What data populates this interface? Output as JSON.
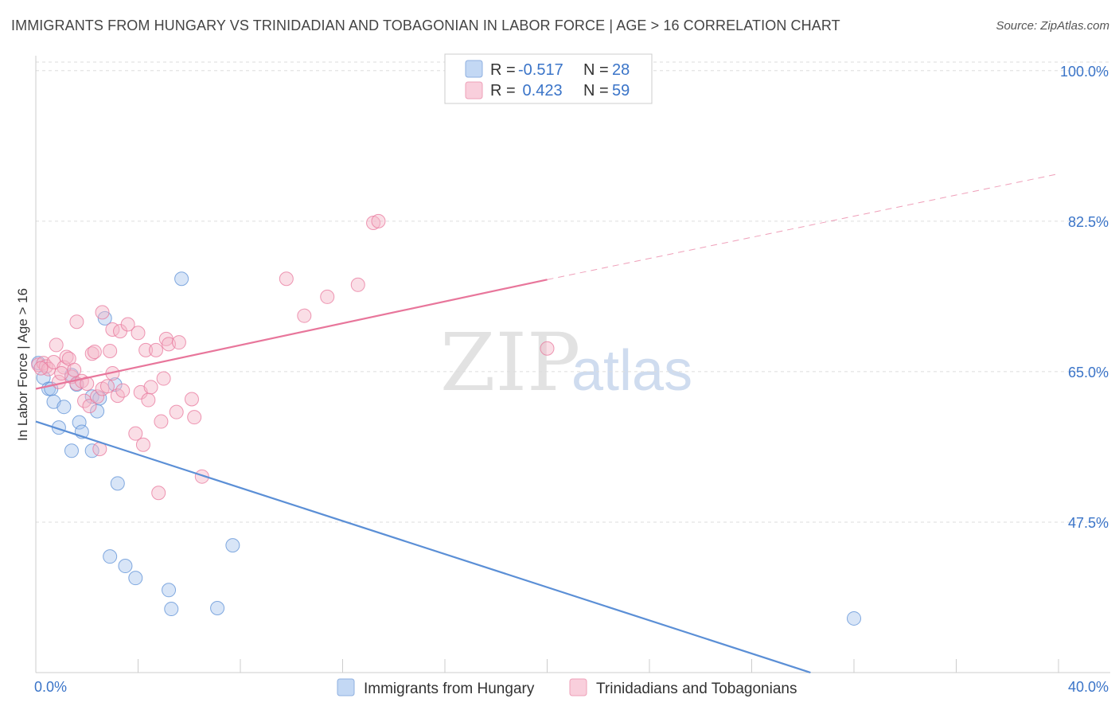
{
  "header": {
    "title": "IMMIGRANTS FROM HUNGARY VS TRINIDADIAN AND TOBAGONIAN IN LABOR FORCE | AGE > 16 CORRELATION CHART",
    "source": "Source: ZipAtlas.com"
  },
  "watermark": {
    "part1": "ZIP",
    "part2": "atlas"
  },
  "legend": {
    "r_label": "R =",
    "n_label": "N =",
    "series": [
      {
        "r": "-0.517",
        "n": "28",
        "color": "#a9c6ee"
      },
      {
        "r": " 0.423",
        "n": "59",
        "color": "#f5b6c8"
      }
    ]
  },
  "bottom_legend": [
    "Immigrants from Hungary",
    "Trinidadians and Tobagonians"
  ],
  "chart_data": {
    "type": "scatter",
    "title": "IMMIGRANTS FROM HUNGARY VS TRINIDADIAN AND TOBAGONIAN IN LABOR FORCE | AGE > 16 CORRELATION CHART",
    "ylabel": "In Labor Force | Age > 16",
    "xlim": [
      0,
      40
    ],
    "ylim": [
      30,
      101
    ],
    "y_ticks": [
      {
        "value": 100.0,
        "label": "100.0%"
      },
      {
        "value": 82.5,
        "label": "82.5%"
      },
      {
        "value": 65.0,
        "label": "65.0%"
      },
      {
        "value": 47.5,
        "label": "47.5%"
      }
    ],
    "x_tick_labels": {
      "min": "0.0%",
      "max": "40.0%"
    },
    "grid": true,
    "series": [
      {
        "name": "Immigrants from Hungary",
        "color": "#5b8fd6",
        "fill": "#a9c6ee",
        "trend": {
          "x": [
            0,
            30.3
          ],
          "y": [
            59.2,
            30
          ],
          "dashed_to": null
        },
        "points": [
          [
            0.1,
            66.0
          ],
          [
            0.3,
            64.3
          ],
          [
            0.5,
            63.0
          ],
          [
            0.6,
            63.0
          ],
          [
            0.7,
            61.5
          ],
          [
            0.9,
            58.5
          ],
          [
            1.1,
            60.9
          ],
          [
            1.4,
            64.6
          ],
          [
            1.4,
            55.8
          ],
          [
            1.6,
            63.5
          ],
          [
            1.7,
            59.1
          ],
          [
            1.8,
            58.0
          ],
          [
            2.2,
            62.1
          ],
          [
            2.2,
            55.8
          ],
          [
            2.4,
            60.4
          ],
          [
            2.5,
            61.9
          ],
          [
            2.7,
            71.2
          ],
          [
            3.1,
            63.5
          ],
          [
            3.2,
            52.0
          ],
          [
            2.9,
            43.5
          ],
          [
            3.5,
            42.4
          ],
          [
            3.9,
            41.0
          ],
          [
            5.2,
            39.6
          ],
          [
            5.3,
            37.4
          ],
          [
            5.7,
            75.8
          ],
          [
            7.1,
            37.5
          ],
          [
            7.7,
            44.8
          ],
          [
            32.0,
            36.3
          ]
        ]
      },
      {
        "name": "Trinidadians and Tobagonians",
        "color": "#e8769b",
        "fill": "#f5b6c8",
        "trend": {
          "x": [
            0,
            20
          ],
          "y": [
            63.0,
            75.7
          ],
          "dashed_to": [
            40,
            88.0
          ]
        },
        "points": [
          [
            0.1,
            65.8
          ],
          [
            0.3,
            66.0
          ],
          [
            0.4,
            65.6
          ],
          [
            0.5,
            65.3
          ],
          [
            0.7,
            66.1
          ],
          [
            0.8,
            68.1
          ],
          [
            0.9,
            63.8
          ],
          [
            1.1,
            65.5
          ],
          [
            1.2,
            66.7
          ],
          [
            1.3,
            66.5
          ],
          [
            1.4,
            64.4
          ],
          [
            1.5,
            65.2
          ],
          [
            1.6,
            63.6
          ],
          [
            1.6,
            70.8
          ],
          [
            1.8,
            63.9
          ],
          [
            1.9,
            61.6
          ],
          [
            2.0,
            63.6
          ],
          [
            2.1,
            61.0
          ],
          [
            2.2,
            67.1
          ],
          [
            2.3,
            67.3
          ],
          [
            2.4,
            62.1
          ],
          [
            2.5,
            56.0
          ],
          [
            2.6,
            63.0
          ],
          [
            2.6,
            71.9
          ],
          [
            2.8,
            63.3
          ],
          [
            2.9,
            67.4
          ],
          [
            3.0,
            69.9
          ],
          [
            3.2,
            62.2
          ],
          [
            3.3,
            69.7
          ],
          [
            3.4,
            62.8
          ],
          [
            3.6,
            70.5
          ],
          [
            3.9,
            57.8
          ],
          [
            4.0,
            69.5
          ],
          [
            4.1,
            62.6
          ],
          [
            4.2,
            56.5
          ],
          [
            4.3,
            67.5
          ],
          [
            4.4,
            61.7
          ],
          [
            4.5,
            63.2
          ],
          [
            4.7,
            67.5
          ],
          [
            4.8,
            50.9
          ],
          [
            4.9,
            59.2
          ],
          [
            5.0,
            64.2
          ],
          [
            5.1,
            68.8
          ],
          [
            5.2,
            68.2
          ],
          [
            5.5,
            60.3
          ],
          [
            5.6,
            68.4
          ],
          [
            6.1,
            61.8
          ],
          [
            6.2,
            59.7
          ],
          [
            6.5,
            52.8
          ],
          [
            9.8,
            75.8
          ],
          [
            10.5,
            71.5
          ],
          [
            11.4,
            73.7
          ],
          [
            12.6,
            75.1
          ],
          [
            13.2,
            82.3
          ],
          [
            13.4,
            82.5
          ],
          [
            20.0,
            67.7
          ],
          [
            3.0,
            64.8
          ],
          [
            0.2,
            65.4
          ],
          [
            1.0,
            64.8
          ]
        ]
      }
    ]
  }
}
